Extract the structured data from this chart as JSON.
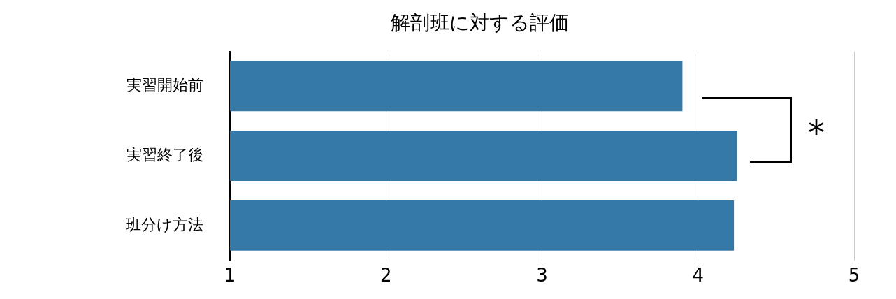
{
  "chart_data": {
    "type": "bar",
    "orientation": "horizontal",
    "title": "解剖班に対する評価",
    "categories": [
      "実習開始前",
      "実習終了後",
      "班分け方法"
    ],
    "values": [
      3.9,
      4.25,
      4.23
    ],
    "color": "#3579a8",
    "xlim": [
      1,
      5
    ],
    "xticks": [
      1,
      2,
      3,
      4,
      5
    ],
    "grid": "x",
    "annotations": [
      "*"
    ]
  }
}
